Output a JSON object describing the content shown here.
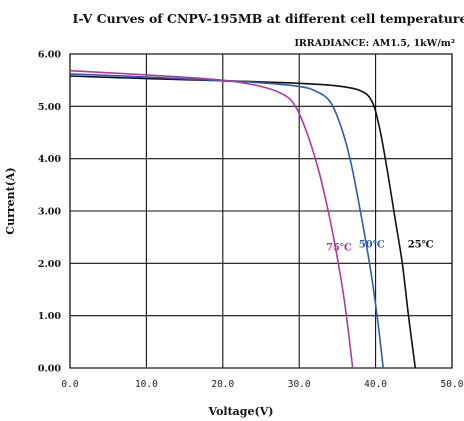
{
  "chart_data": {
    "type": "line",
    "title": "I-V Curves of CNPV-195MB at different cell temperature",
    "subtitle": "IRRADIANCE:  AM1.5,  1kW/m²",
    "xlabel": "Voltage(V)",
    "ylabel": "Current(A)",
    "xlim": [
      0,
      50
    ],
    "ylim": [
      0,
      6
    ],
    "x_ticks": [
      "0.0",
      "10.0",
      "20.0",
      "30.0",
      "40.0",
      "50.0"
    ],
    "y_ticks": [
      "0.00",
      "1.00",
      "2.00",
      "3.00",
      "4.00",
      "5.00",
      "6.00"
    ],
    "grid": true,
    "series": [
      {
        "name": "25℃",
        "color": "#111111",
        "points": [
          [
            0,
            5.58
          ],
          [
            10,
            5.53
          ],
          [
            20,
            5.49
          ],
          [
            30,
            5.44
          ],
          [
            35,
            5.39
          ],
          [
            38,
            5.3
          ],
          [
            39.5,
            5.1
          ],
          [
            40.5,
            4.6
          ],
          [
            41.5,
            3.8
          ],
          [
            42.5,
            2.9
          ],
          [
            43.5,
            2.0
          ],
          [
            44.3,
            1.0
          ],
          [
            45.2,
            0
          ]
        ]
      },
      {
        "name": "50℃",
        "color": "#2a5db0",
        "points": [
          [
            0,
            5.62
          ],
          [
            10,
            5.56
          ],
          [
            20,
            5.49
          ],
          [
            25,
            5.45
          ],
          [
            30,
            5.38
          ],
          [
            32,
            5.3
          ],
          [
            34,
            5.1
          ],
          [
            35.5,
            4.6
          ],
          [
            36.8,
            3.9
          ],
          [
            38,
            3.0
          ],
          [
            39.2,
            2.0
          ],
          [
            40.2,
            1.0
          ],
          [
            41,
            0
          ]
        ]
      },
      {
        "name": "75℃",
        "color": "#b03a9c",
        "points": [
          [
            0,
            5.68
          ],
          [
            10,
            5.6
          ],
          [
            20,
            5.5
          ],
          [
            25,
            5.38
          ],
          [
            28,
            5.22
          ],
          [
            29.5,
            5.0
          ],
          [
            31,
            4.5
          ],
          [
            32.5,
            3.8
          ],
          [
            33.8,
            3.0
          ],
          [
            35,
            2.1
          ],
          [
            36,
            1.2
          ],
          [
            37,
            0
          ]
        ]
      }
    ],
    "annotations": [
      {
        "text": "75℃",
        "x": 33.5,
        "y": 2.25,
        "color": "#b03a9c"
      },
      {
        "text": "50℃",
        "x": 37.8,
        "y": 2.3,
        "color": "#2a5db0"
      },
      {
        "text": "25℃",
        "x": 44.2,
        "y": 2.3,
        "color": "#111111"
      }
    ]
  }
}
